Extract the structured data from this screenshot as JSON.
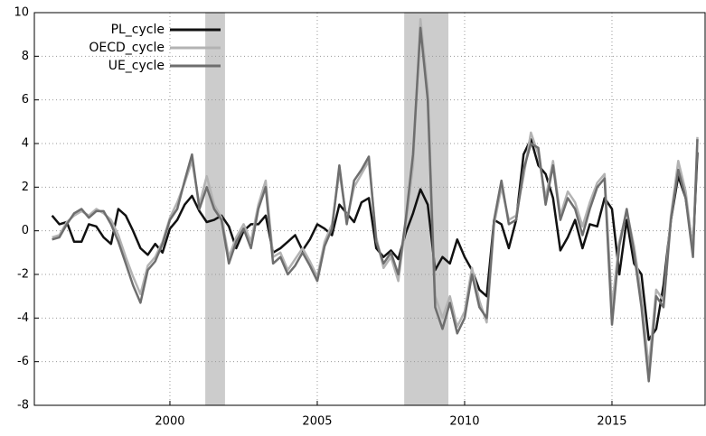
{
  "chart_data": {
    "type": "line",
    "xlim": [
      1995.4,
      2018.16
    ],
    "xticks": [
      2000,
      2005,
      2010,
      2015
    ],
    "ylim": [
      -8,
      10
    ],
    "yticks": [
      -8,
      -6,
      -4,
      -2,
      0,
      2,
      4,
      6,
      8,
      10
    ],
    "grid": true,
    "legend": "upper left",
    "shaded_spans": [
      [
        2001.2,
        2001.87
      ],
      [
        2007.95,
        2009.45
      ]
    ],
    "shade_color": "#cccccc",
    "x": [
      1996,
      1996.25,
      1996.5,
      1996.75,
      1997,
      1997.25,
      1997.5,
      1997.75,
      1998,
      1998.25,
      1998.5,
      1998.75,
      1999,
      1999.25,
      1999.5,
      1999.75,
      2000,
      2000.25,
      2000.5,
      2000.75,
      2001,
      2001.25,
      2001.5,
      2001.75,
      2002,
      2002.25,
      2002.5,
      2002.75,
      2003,
      2003.25,
      2003.5,
      2003.75,
      2004,
      2004.25,
      2004.5,
      2004.75,
      2005,
      2005.25,
      2005.5,
      2005.75,
      2006,
      2006.25,
      2006.5,
      2006.75,
      2007,
      2007.25,
      2007.5,
      2007.75,
      2008,
      2008.25,
      2008.5,
      2008.75,
      2009,
      2009.25,
      2009.5,
      2009.75,
      2010,
      2010.25,
      2010.5,
      2010.75,
      2011,
      2011.25,
      2011.5,
      2011.75,
      2012,
      2012.25,
      2012.5,
      2012.75,
      2013,
      2013.25,
      2013.5,
      2013.75,
      2014,
      2014.25,
      2014.5,
      2014.75,
      2015,
      2015.25,
      2015.5,
      2015.75,
      2016,
      2016.25,
      2016.5,
      2016.75,
      2017,
      2017.25,
      2017.5,
      2017.75,
      2017.9
    ],
    "series": [
      {
        "name": "PL_cycle",
        "color": "#111111",
        "values": [
          0.7,
          0.3,
          0.4,
          -0.5,
          -0.5,
          0.3,
          0.2,
          -0.3,
          -0.6,
          1.0,
          0.7,
          0,
          -0.8,
          -1.1,
          -0.6,
          -1.0,
          0.1,
          0.5,
          1.2,
          1.6,
          0.9,
          0.4,
          0.5,
          0.7,
          0.2,
          -0.8,
          0,
          0.3,
          0.3,
          0.7,
          -1.0,
          -0.8,
          -0.5,
          -0.2,
          -0.9,
          -0.4,
          0.3,
          0.1,
          -0.2,
          1.2,
          0.8,
          0.4,
          1.3,
          1.5,
          -0.8,
          -1.2,
          -0.9,
          -1.3,
          -0.1,
          0.8,
          1.9,
          1.2,
          -1.8,
          -1.2,
          -1.5,
          -0.4,
          -1.2,
          -1.8,
          -2.7,
          -3.0,
          0.5,
          0.3,
          -0.8,
          0.5,
          3.5,
          4.2,
          3.0,
          2.6,
          1.5,
          -0.9,
          -0.3,
          0.5,
          -0.8,
          0.3,
          0.2,
          1.5,
          1.0,
          -2.0,
          0.5,
          -1.5,
          -2.0,
          -5.0,
          -4.5,
          -2.5,
          0.5,
          2.5,
          1.5,
          -0.8,
          3.6
        ]
      },
      {
        "name": "OECD_cycle",
        "color": "#b3b3b3",
        "values": [
          -0.3,
          -0.2,
          0.4,
          0.7,
          0.9,
          0.7,
          1.0,
          0.8,
          0.5,
          -0.2,
          -1.2,
          -2.1,
          -2.9,
          -1.6,
          -1.2,
          -0.5,
          0.6,
          1.3,
          2.2,
          3.2,
          1.2,
          2.5,
          1.2,
          0.6,
          -1.2,
          -0.3,
          0.3,
          -0.5,
          1.2,
          2.3,
          -1.2,
          -1.0,
          -1.8,
          -1.3,
          -0.8,
          -1.4,
          -2.1,
          -0.5,
          0.3,
          2.7,
          0.5,
          2.0,
          2.6,
          3.2,
          -0.3,
          -1.7,
          -1.2,
          -2.3,
          0.3,
          3.0,
          9.7,
          6.5,
          -3.0,
          -4.0,
          -3.0,
          -4.4,
          -3.7,
          -1.7,
          -3.2,
          -4.2,
          0.3,
          2.0,
          0.5,
          0.7,
          2.5,
          4.5,
          3.5,
          1.5,
          3.2,
          0.7,
          1.8,
          1.3,
          0.2,
          1.3,
          2.2,
          2.6,
          -3.5,
          -0.5,
          0.9,
          -0.7,
          -3.0,
          -6.3,
          -2.7,
          -3.2,
          0.7,
          3.2,
          1.8,
          -0.9,
          4.3
        ]
      },
      {
        "name": "UE_cycle",
        "color": "#6e6e6e",
        "values": [
          -0.4,
          -0.3,
          0.3,
          0.8,
          1.0,
          0.6,
          0.9,
          0.9,
          0.3,
          -0.5,
          -1.5,
          -2.5,
          -3.3,
          -1.8,
          -1.4,
          -0.6,
          0.5,
          1.0,
          2.3,
          3.5,
          1.0,
          2.0,
          1.0,
          0.5,
          -1.5,
          -0.5,
          0.1,
          -0.8,
          1.0,
          2.0,
          -1.5,
          -1.2,
          -2.0,
          -1.6,
          -1.0,
          -1.6,
          -2.3,
          -0.7,
          0.1,
          3.0,
          0.3,
          2.3,
          2.8,
          3.4,
          -0.5,
          -1.5,
          -1.0,
          -2.0,
          0.5,
          3.5,
          9.3,
          6.0,
          -3.5,
          -4.5,
          -3.3,
          -4.7,
          -4.0,
          -2.0,
          -3.5,
          -4.0,
          0.5,
          2.3,
          0.3,
          0.5,
          2.8,
          4.0,
          3.8,
          1.2,
          3.0,
          0.5,
          1.5,
          1.0,
          -0.2,
          1.0,
          2.0,
          2.4,
          -4.3,
          -0.7,
          1.0,
          -1.0,
          -3.5,
          -6.9,
          -3.0,
          -3.5,
          0.5,
          2.8,
          1.5,
          -1.2,
          4.2
        ]
      }
    ]
  }
}
